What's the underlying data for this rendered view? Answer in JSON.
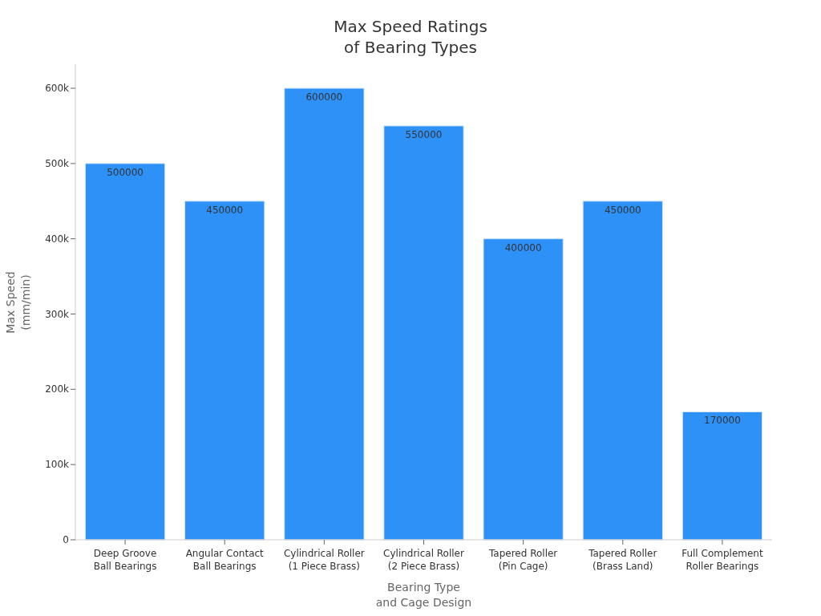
{
  "chart_data": {
    "type": "bar",
    "title": "Max Speed Ratings\nof Bearing Types",
    "xlabel": "Bearing Type\nand Cage Design",
    "ylabel": "Max Speed\n(mm/min)",
    "categories": [
      "Deep Groove\nBall Bearings",
      "Angular Contact\nBall Bearings",
      "Cylindrical Roller\n(1 Piece Brass)",
      "Cylindrical Roller\n(2 Piece Brass)",
      "Tapered Roller\n(Pin Cage)",
      "Tapered Roller\n(Brass Land)",
      "Full Complement\nRoller Bearings"
    ],
    "values": [
      500000,
      450000,
      600000,
      550000,
      400000,
      450000,
      170000
    ],
    "color": "#2e91f8",
    "ylim": [
      0,
      632000
    ],
    "yticks": [
      0,
      {
        "value": 100000,
        "label": "100k"
      },
      {
        "value": 200000,
        "label": "200k"
      },
      {
        "value": 300000,
        "label": "300k"
      },
      {
        "value": 400000,
        "label": "400k"
      },
      {
        "value": 500000,
        "label": "500k"
      },
      {
        "value": 600000,
        "label": "600k"
      }
    ],
    "data_labels": true,
    "grid": false
  }
}
